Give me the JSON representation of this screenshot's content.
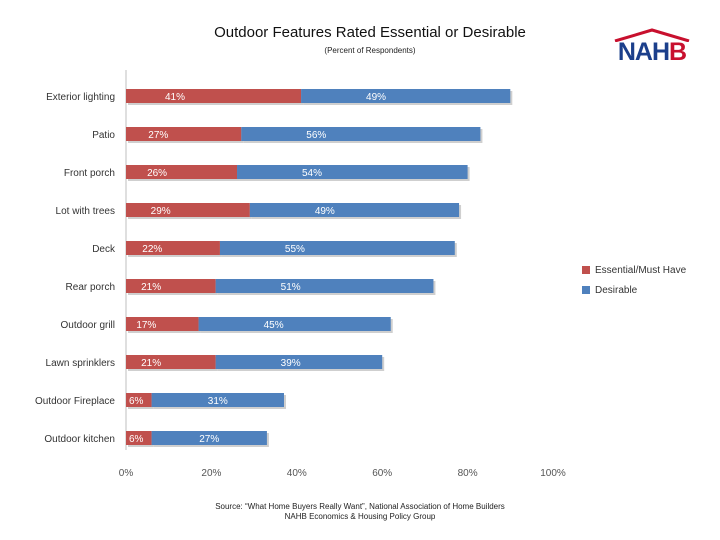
{
  "chart_data": {
    "type": "bar",
    "orientation": "horizontal",
    "stacked": true,
    "title": "Outdoor Features Rated Essential or Desirable",
    "subtitle": "(Percent of Respondents)",
    "categories": [
      "Exterior lighting",
      "Patio",
      "Front porch",
      "Lot with trees",
      "Deck",
      "Rear porch",
      "Outdoor grill",
      "Lawn sprinklers",
      "Outdoor Fireplace",
      "Outdoor kitchen"
    ],
    "series": [
      {
        "name": "Essential/Must Have",
        "color": "#c0504d",
        "values": [
          41,
          27,
          26,
          29,
          22,
          21,
          17,
          21,
          6,
          6
        ]
      },
      {
        "name": "Desirable",
        "color": "#4f81bd",
        "values": [
          49,
          56,
          54,
          49,
          55,
          51,
          45,
          39,
          31,
          27
        ]
      }
    ],
    "value_labels": {
      "Essential/Must Have": [
        "41%",
        "27%",
        "26%",
        "29%",
        "22%",
        "21%",
        "17%",
        "21%",
        "6%",
        "6%"
      ],
      "Desirable": [
        "49%",
        "56%",
        "54%",
        "49%",
        "55%",
        "51%",
        "45%",
        "39%",
        "31%",
        "27%"
      ]
    },
    "xlim": [
      0,
      100
    ],
    "x_ticks": [
      "0%",
      "20%",
      "40%",
      "60%",
      "80%",
      "100%"
    ],
    "grid": false,
    "legend_position": "right"
  },
  "logo": {
    "text_main": "NAH",
    "text_accent": "B"
  },
  "source": {
    "line1": "Source: “What Home Buyers Really Want”, National Association of Home Builders",
    "line2": "NAHB Economics & Housing Policy Group"
  }
}
